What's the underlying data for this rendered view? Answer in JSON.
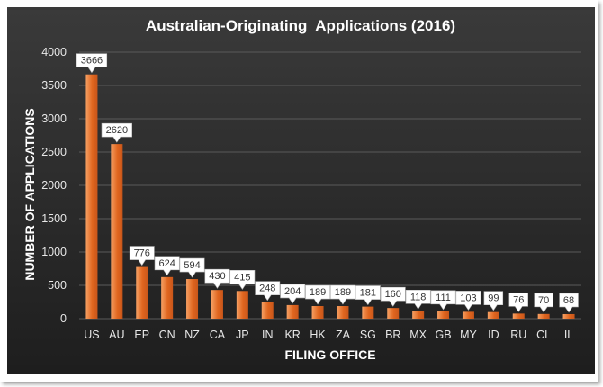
{
  "colors": {
    "background_top": "#3a3a3a",
    "background_bottom": "#1e1e1e",
    "bar_light": "#f6a063",
    "bar_dark": "#e0661f",
    "grid": "#5a5a5a",
    "label_box": "#ffffff"
  },
  "chart_data": {
    "type": "bar",
    "title": "Australian-Originating  Applications (2016)",
    "xlabel": "FILING OFFICE",
    "ylabel": "NUMBER OF APPLICATIONS",
    "ylim": [
      0,
      4000
    ],
    "yticks": [
      0,
      500,
      1000,
      1500,
      2000,
      2500,
      3000,
      3500,
      4000
    ],
    "grid": true,
    "legend": "none",
    "categories": [
      "US",
      "AU",
      "EP",
      "CN",
      "NZ",
      "CA",
      "JP",
      "IN",
      "KR",
      "HK",
      "ZA",
      "SG",
      "BR",
      "MX",
      "GB",
      "MY",
      "ID",
      "RU",
      "CL",
      "IL"
    ],
    "values": [
      3666,
      2620,
      776,
      624,
      594,
      430,
      415,
      248,
      204,
      189,
      189,
      181,
      160,
      118,
      111,
      103,
      99,
      76,
      70,
      68
    ]
  }
}
